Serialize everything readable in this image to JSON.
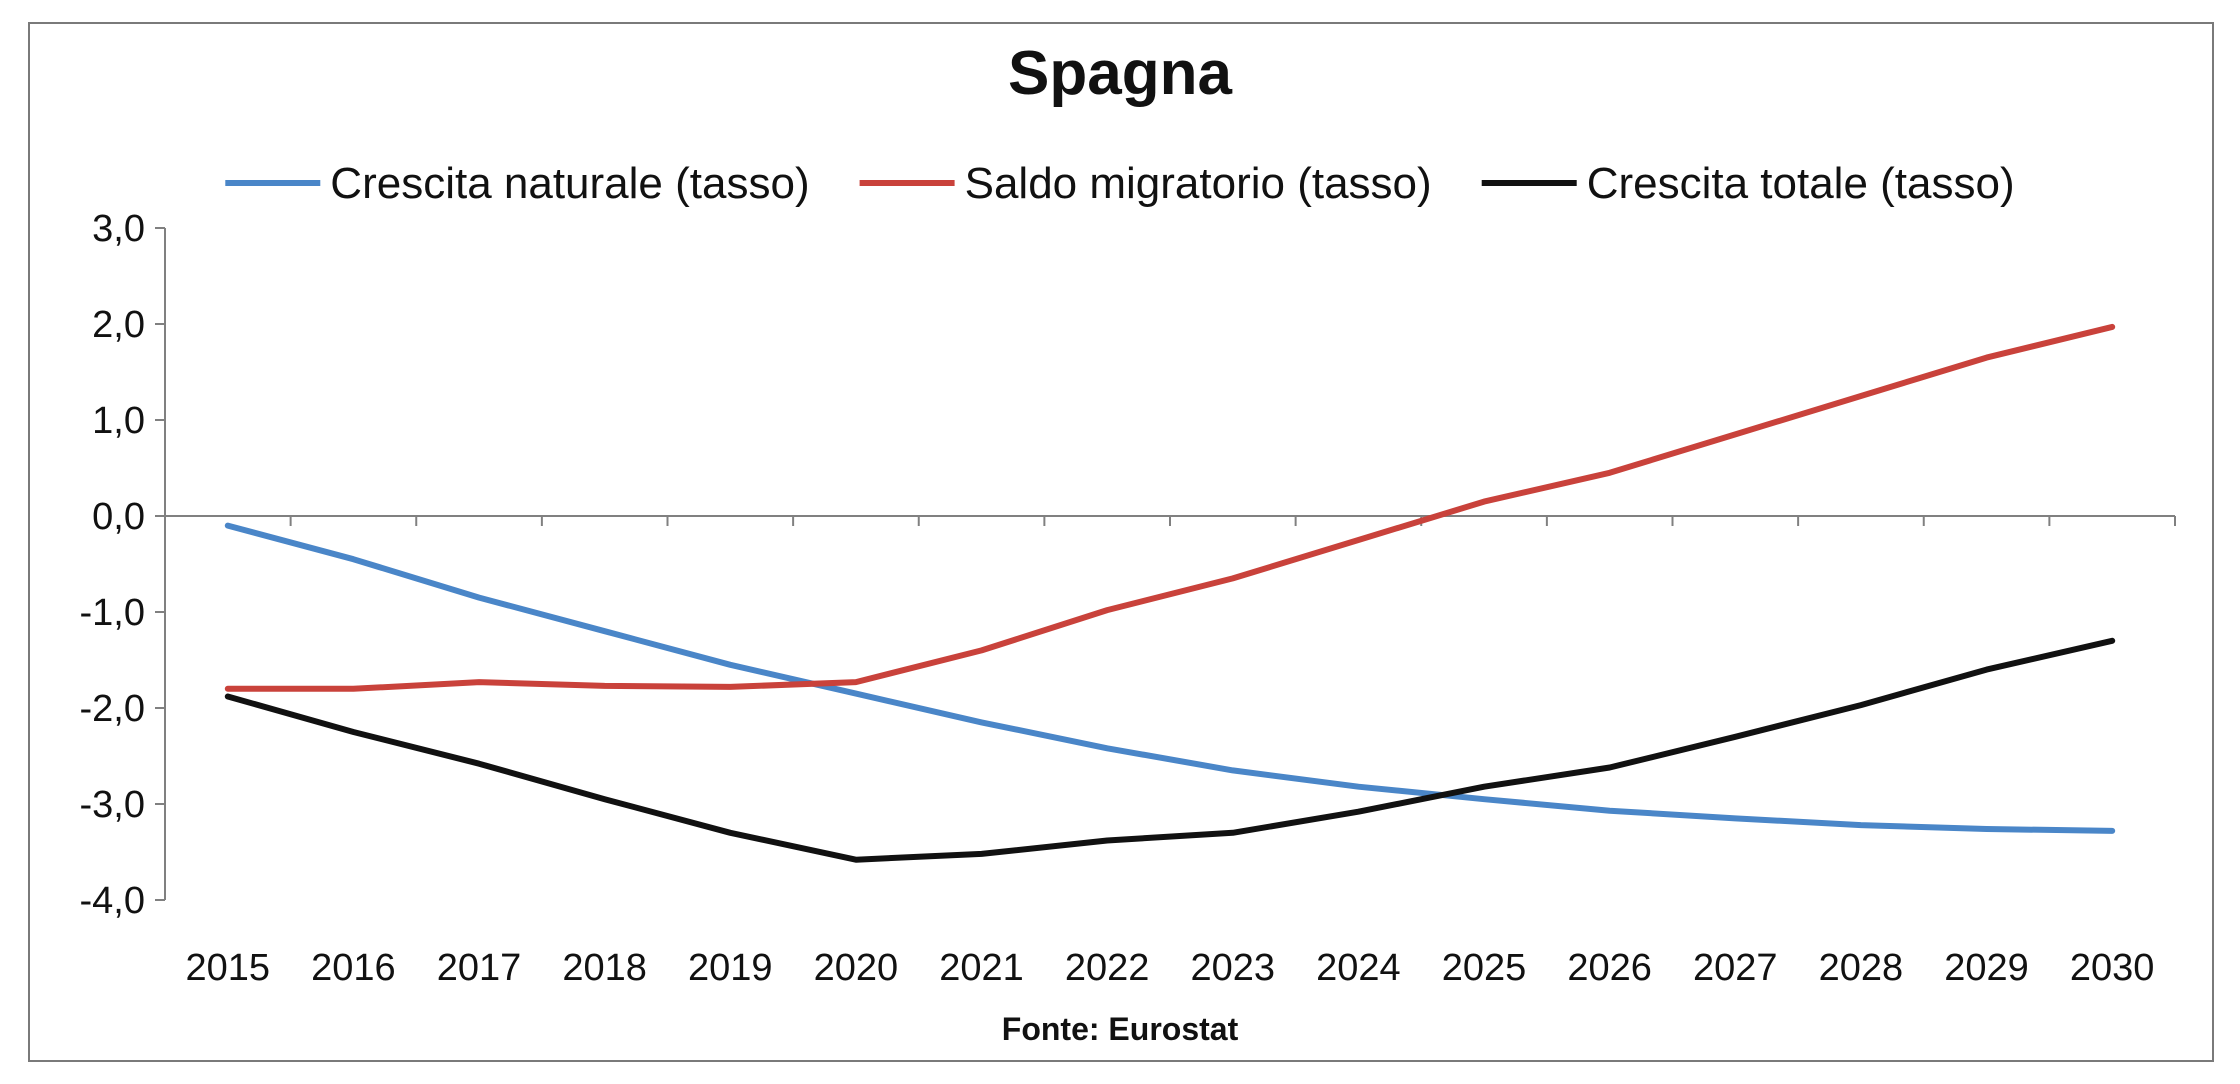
{
  "chart_data": {
    "type": "line",
    "title": "Spagna",
    "source": "Fonte: Eurostat",
    "xlabel": "",
    "ylabel": "",
    "ylim": [
      -4.0,
      3.0
    ],
    "yticks": [
      "3,0",
      "2,0",
      "1,0",
      "0,0",
      "-1,0",
      "-2,0",
      "-3,0",
      "-4,0"
    ],
    "ytick_values": [
      3,
      2,
      1,
      0,
      -1,
      -2,
      -3,
      -4
    ],
    "categories": [
      "2015",
      "2016",
      "2017",
      "2018",
      "2019",
      "2020",
      "2021",
      "2022",
      "2023",
      "2024",
      "2025",
      "2026",
      "2027",
      "2028",
      "2029",
      "2030"
    ],
    "grid": false,
    "legend_position": "top",
    "series": [
      {
        "name": "Crescita naturale (tasso)",
        "color": "#4a86c8",
        "values": [
          -0.1,
          -0.45,
          -0.85,
          -1.2,
          -1.55,
          -1.85,
          -2.15,
          -2.42,
          -2.65,
          -2.82,
          -2.95,
          -3.07,
          -3.15,
          -3.22,
          -3.26,
          -3.28
        ]
      },
      {
        "name": "Saldo migratorio (tasso)",
        "color": "#c9423b",
        "values": [
          -1.8,
          -1.8,
          -1.73,
          -1.77,
          -1.78,
          -1.73,
          -1.4,
          -0.98,
          -0.65,
          -0.25,
          0.15,
          0.45,
          0.85,
          1.25,
          1.65,
          1.97
        ]
      },
      {
        "name": "Crescita totale (tasso)",
        "color": "#111111",
        "values": [
          -1.88,
          -2.25,
          -2.58,
          -2.95,
          -3.3,
          -3.58,
          -3.52,
          -3.38,
          -3.3,
          -3.08,
          -2.82,
          -2.62,
          -2.3,
          -1.97,
          -1.6,
          -1.3
        ]
      }
    ]
  }
}
